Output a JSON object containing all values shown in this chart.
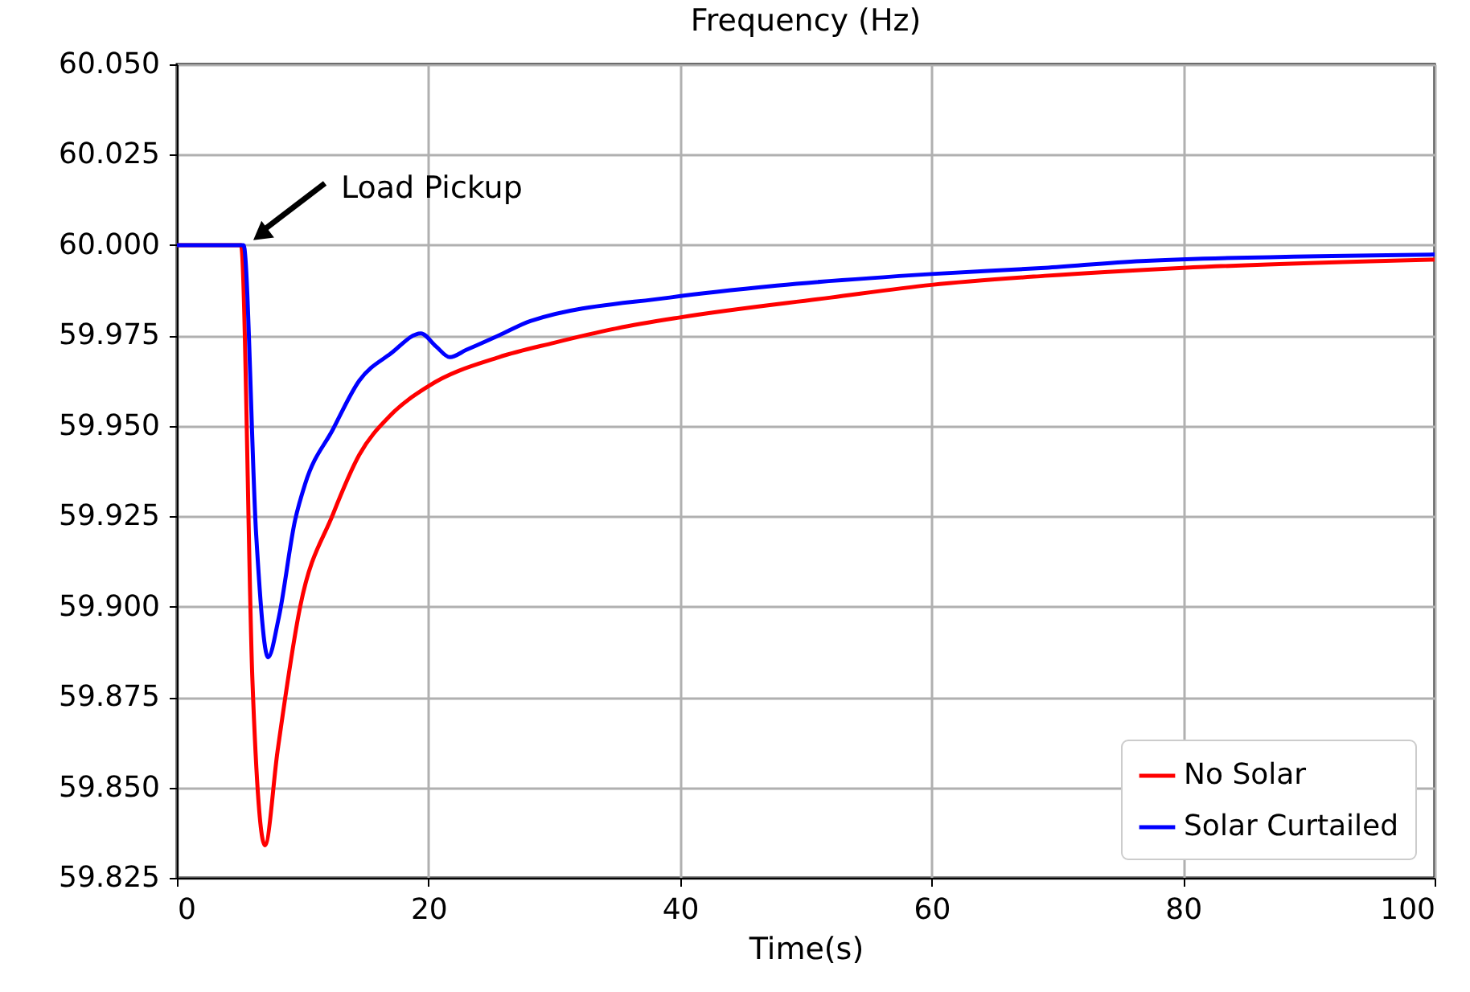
{
  "chart_data": {
    "type": "line",
    "title": "Frequency (Hz)",
    "xlabel": "Time(s)",
    "xlim": [
      0,
      100
    ],
    "xticks": [
      0,
      20,
      40,
      60,
      80,
      100
    ],
    "ylim": [
      59.825,
      60.05
    ],
    "yticks": [
      {
        "value": 59.825,
        "label": "59.825"
      },
      {
        "value": 59.85,
        "label": "59.850"
      },
      {
        "value": 59.875,
        "label": "59.875"
      },
      {
        "value": 59.9,
        "label": "59.900"
      },
      {
        "value": 59.925,
        "label": "59.925"
      },
      {
        "value": 59.95,
        "label": "59.950"
      },
      {
        "value": 59.975,
        "label": "59.975"
      },
      {
        "value": 60.0,
        "label": "60.000"
      },
      {
        "value": 60.025,
        "label": "60.025"
      },
      {
        "value": 60.05,
        "label": "60.050"
      }
    ],
    "grid": true,
    "legend": "bottom right",
    "line_style": "solid",
    "annotations": [
      "Load Pickup"
    ],
    "series": [
      {
        "name": "No Solar",
        "color": "#ff0000",
        "x": [
          0,
          5.1,
          6.0,
          7.0,
          8.0,
          9.8,
          12.4,
          14.5,
          17.0,
          20.0,
          25.6,
          30,
          35,
          40,
          52,
          60,
          69,
          80,
          100
        ],
        "values": [
          60.0,
          60.0,
          59.88,
          59.834,
          59.86,
          59.9,
          59.9255,
          59.942,
          59.953,
          59.961,
          59.969,
          59.973,
          59.977,
          59.98,
          59.9855,
          59.989,
          59.9915,
          59.9937,
          59.996
        ]
      },
      {
        "name": "Solar Curtailed",
        "color": "#0000ff",
        "x": [
          0,
          5.3,
          6.3,
          7.25,
          8.1,
          9.4,
          10.2,
          12.4,
          14.5,
          17.0,
          19.4,
          20.6,
          21.7,
          23.0,
          25.6,
          28.1,
          39.2,
          47.7,
          60,
          69,
          76.7,
          100
        ],
        "values": [
          60.0,
          60.0,
          59.92,
          59.886,
          59.897,
          59.924,
          59.934,
          59.949,
          59.9625,
          59.97,
          59.9756,
          59.972,
          59.969,
          59.971,
          59.975,
          59.979,
          59.9855,
          59.9888,
          59.992,
          59.9937,
          59.9956,
          59.9974
        ]
      }
    ]
  }
}
